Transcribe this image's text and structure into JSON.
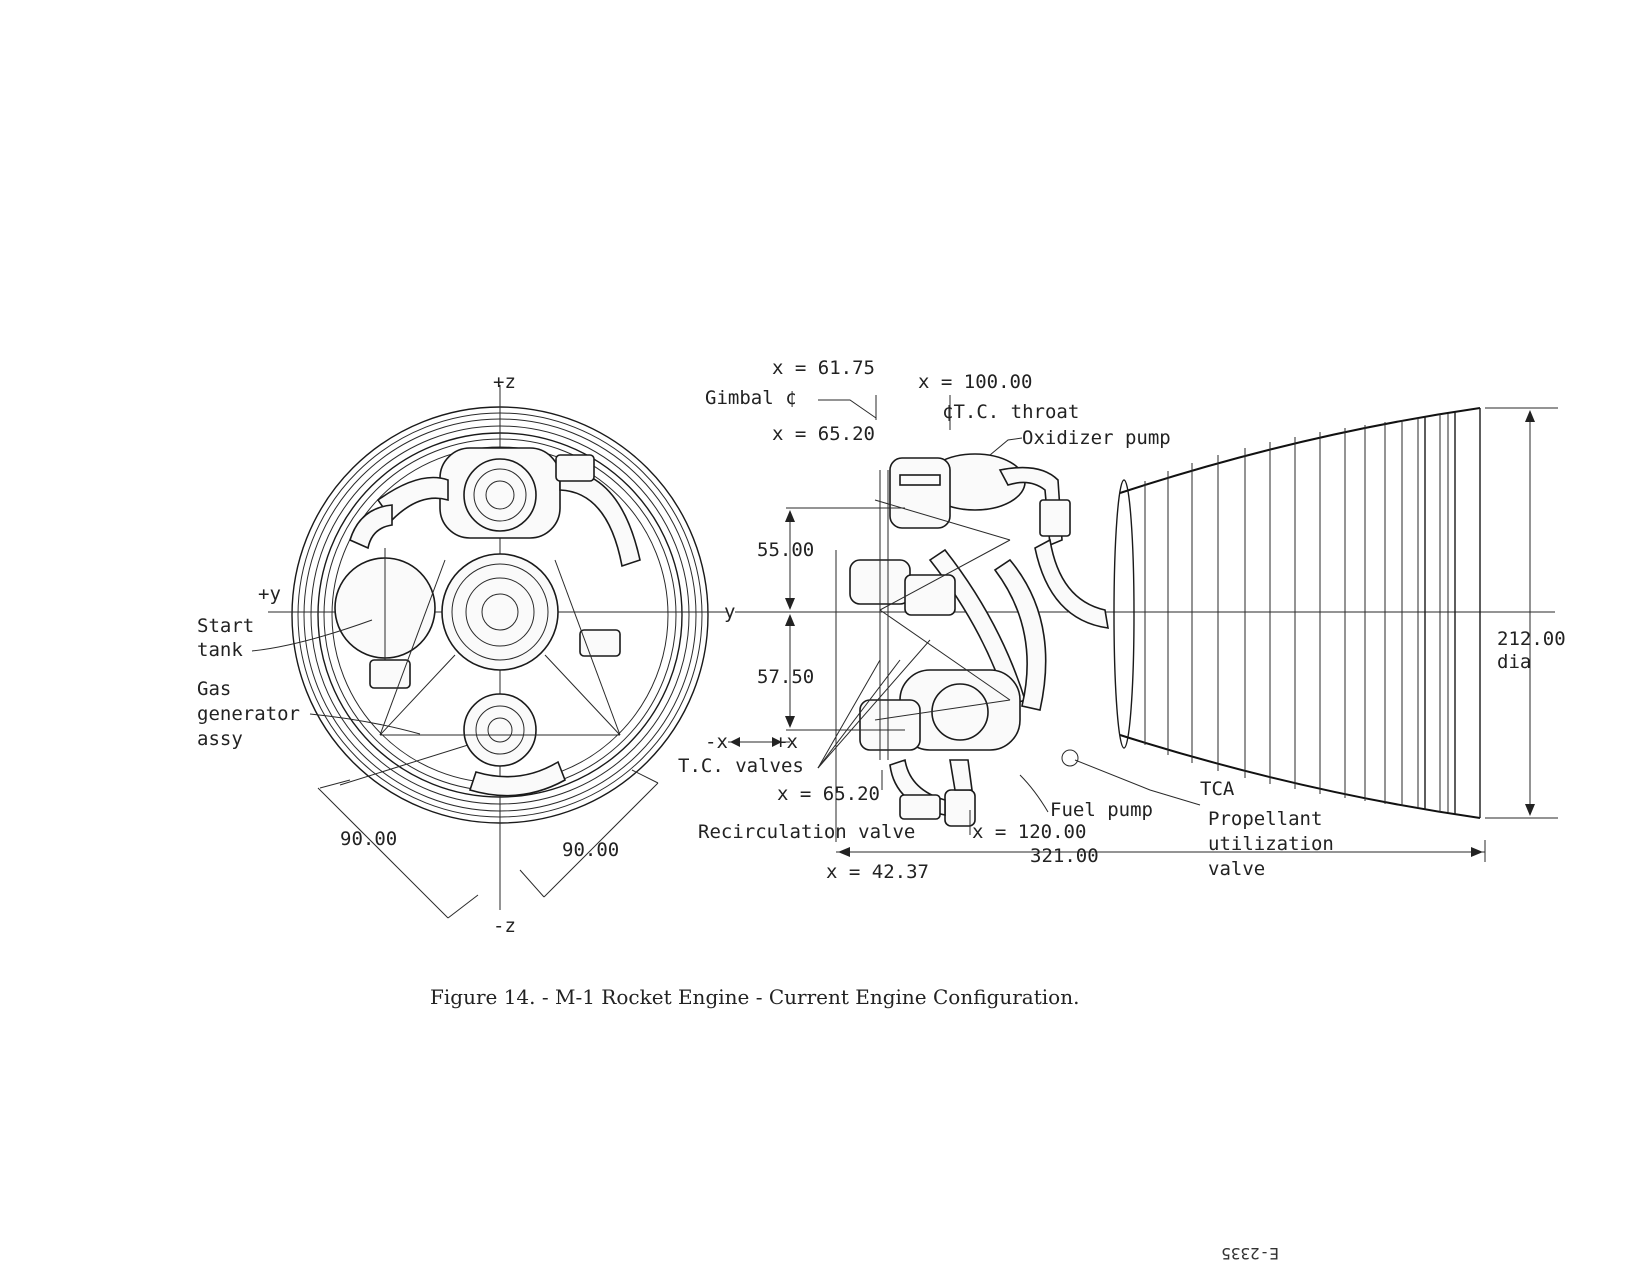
{
  "caption": "Figure 14. - M-1 Rocket Engine - Current Engine Configuration.",
  "plate_number": "E-2335",
  "end_view": {
    "axis_labels": {
      "plus_z": "+z",
      "minus_z": "-z",
      "plus_y": "+y",
      "y": "y"
    },
    "labels": {
      "start_tank": [
        "Start",
        "tank"
      ],
      "gas_generator": [
        "Gas",
        "generator",
        "assy"
      ]
    },
    "dimensions": {
      "dim_left": "90.00",
      "dim_right": "90.00"
    }
  },
  "side_view": {
    "labels": {
      "x_61_75": "x = 61.75",
      "gimbal": "Gimbal ¢",
      "x_65_20_top": "x = 65.20",
      "x_100": "x = 100.00",
      "tc_throat": "¢T.C. throat",
      "oxidizer_pump": "Oxidizer pump",
      "dim_55": "55.00",
      "dim_57_5": "57.50",
      "minus_x": "-x",
      "plus_x": "+x",
      "tc_valves": "T.C. valves",
      "x_65_20_bottom": "x = 65.20",
      "recirculation_valve": "Recirculation valve",
      "x_120": "x = 120.00",
      "dim_321": "321.00",
      "x_42_37": "x = 42.37",
      "fuel_pump": "Fuel pump",
      "tca": "TCA",
      "propellant": [
        "Propellant",
        "utilization",
        "valve"
      ],
      "dia_212": "212.00",
      "dia": "dia"
    }
  }
}
